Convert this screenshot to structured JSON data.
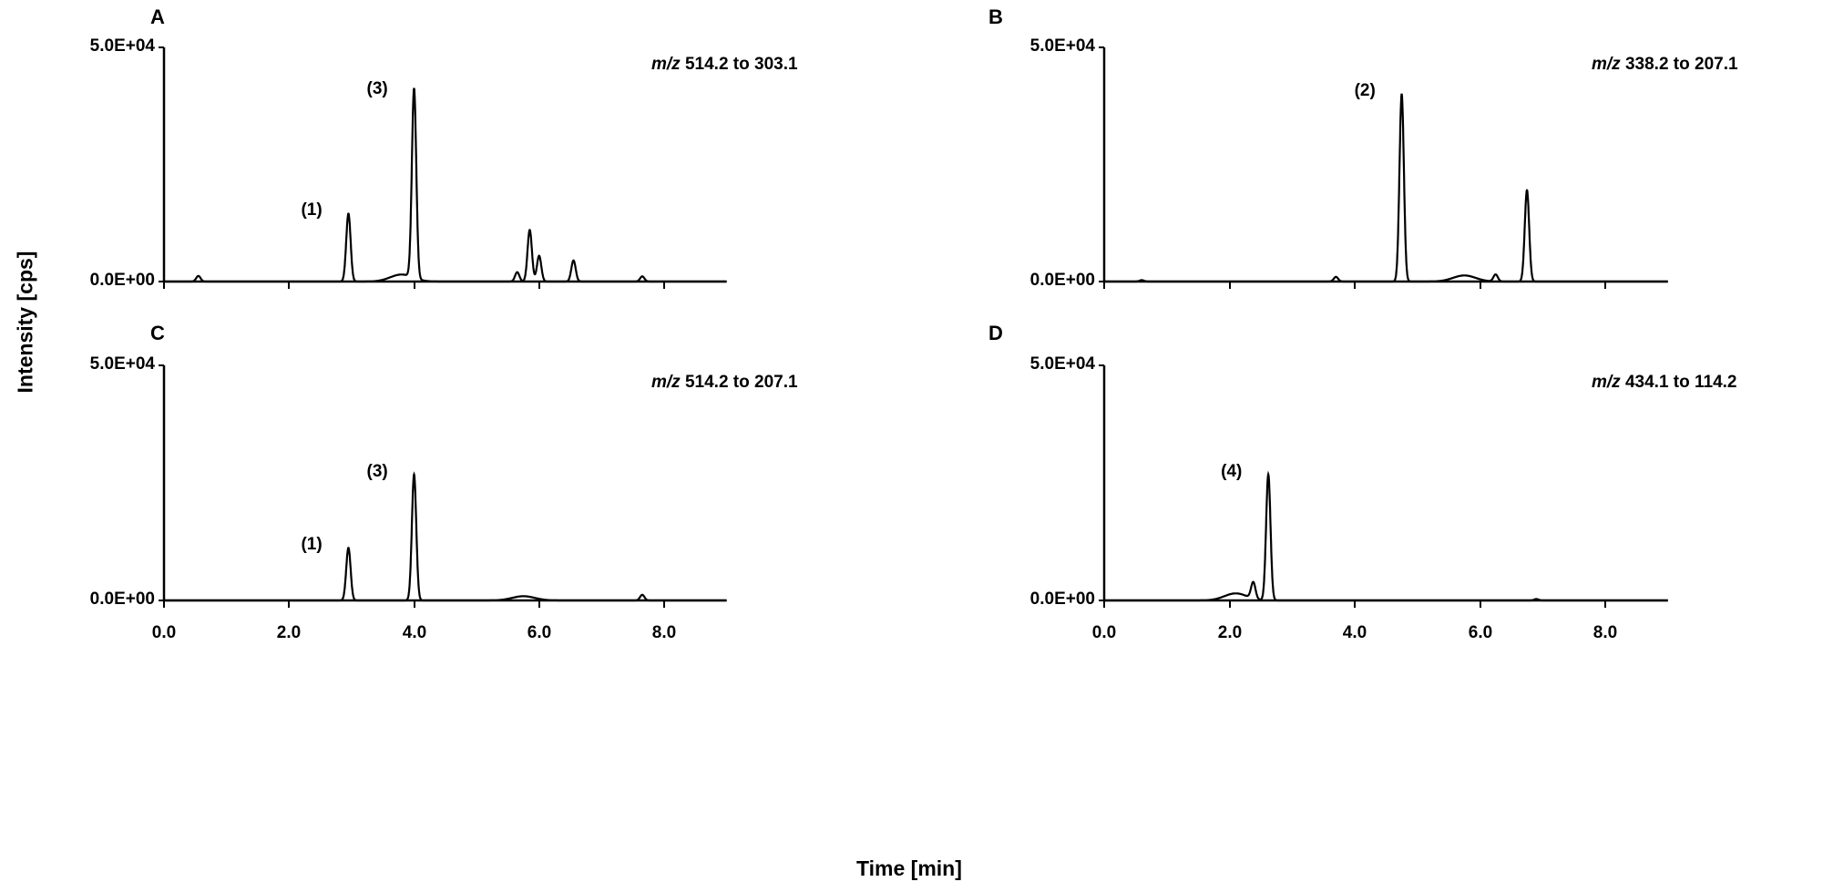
{
  "figure": {
    "ylabel": "Intensity [cps]",
    "xlabel": "Time [min]"
  },
  "panels": [
    {
      "letter": "A",
      "mz_prefix": "m/z",
      "mz_value": "514.2 to 303.1",
      "ymax_label": "5.0E+04",
      "ymin_label": "0.0E+00",
      "peaks": [
        {
          "label": "(1)",
          "rt": 2.95
        },
        {
          "label": "(3)",
          "rt": 4.0
        }
      ]
    },
    {
      "letter": "B",
      "mz_prefix": "m/z",
      "mz_value": "338.2 to 207.1",
      "ymax_label": "5.0E+04",
      "ymin_label": "0.0E+00",
      "peaks": [
        {
          "label": "(2)",
          "rt": 4.75
        }
      ]
    },
    {
      "letter": "C",
      "mz_prefix": "m/z",
      "mz_value": "514.2 to 207.1",
      "ymax_label": "5.0E+04",
      "ymin_label": "0.0E+00",
      "peaks": [
        {
          "label": "(1)",
          "rt": 2.95
        },
        {
          "label": "(3)",
          "rt": 4.0
        }
      ]
    },
    {
      "letter": "D",
      "mz_prefix": "m/z",
      "mz_value": "434.1 to 114.2",
      "ymax_label": "5.0E+04",
      "ymin_label": "0.0E+00",
      "peaks": [
        {
          "label": "(4)",
          "rt": 2.62
        }
      ]
    }
  ],
  "xticks": [
    "0.0",
    "2.0",
    "4.0",
    "6.0",
    "8.0"
  ],
  "chart_data": [
    {
      "type": "line",
      "title": "A: m/z 514.2 to 303.1",
      "xlabel": "Time [min]",
      "ylabel": "Intensity [cps]",
      "xlim": [
        0,
        9
      ],
      "ylim": [
        0,
        50000
      ],
      "x_ticks": [
        0.0,
        2.0,
        4.0,
        6.0,
        8.0
      ],
      "y_ticks": [
        "0.0E+00",
        "5.0E+04"
      ],
      "grid": false,
      "peaks": [
        {
          "rt": 0.55,
          "intensity": 1200
        },
        {
          "rt": 2.95,
          "intensity": 14500,
          "label": "(1)"
        },
        {
          "rt": 3.8,
          "intensity": 1500,
          "note": "broad shoulder"
        },
        {
          "rt": 4.0,
          "intensity": 40500,
          "label": "(3)"
        },
        {
          "rt": 5.65,
          "intensity": 2000
        },
        {
          "rt": 5.85,
          "intensity": 11000
        },
        {
          "rt": 6.0,
          "intensity": 5500
        },
        {
          "rt": 6.55,
          "intensity": 4500
        },
        {
          "rt": 7.65,
          "intensity": 1100
        }
      ]
    },
    {
      "type": "line",
      "title": "B: m/z 338.2 to 207.1",
      "xlabel": "Time [min]",
      "ylabel": "Intensity [cps]",
      "xlim": [
        0,
        9
      ],
      "ylim": [
        0,
        50000
      ],
      "x_ticks": [
        0.0,
        2.0,
        4.0,
        6.0,
        8.0
      ],
      "y_ticks": [
        "0.0E+00",
        "5.0E+04"
      ],
      "grid": false,
      "peaks": [
        {
          "rt": 0.6,
          "intensity": 300
        },
        {
          "rt": 3.7,
          "intensity": 1000
        },
        {
          "rt": 4.75,
          "intensity": 40000,
          "label": "(2)"
        },
        {
          "rt": 5.75,
          "intensity": 1300,
          "note": "broad hump"
        },
        {
          "rt": 6.25,
          "intensity": 1500
        },
        {
          "rt": 6.75,
          "intensity": 19500
        }
      ]
    },
    {
      "type": "line",
      "title": "C: m/z 514.2 to 207.1",
      "xlabel": "Time [min]",
      "ylabel": "Intensity [cps]",
      "xlim": [
        0,
        9
      ],
      "ylim": [
        0,
        50000
      ],
      "x_ticks": [
        0.0,
        2.0,
        4.0,
        6.0,
        8.0
      ],
      "y_ticks": [
        "0.0E+00",
        "5.0E+04"
      ],
      "grid": false,
      "peaks": [
        {
          "rt": 2.95,
          "intensity": 11200,
          "label": "(1)"
        },
        {
          "rt": 4.0,
          "intensity": 26800,
          "label": "(3)"
        },
        {
          "rt": 5.75,
          "intensity": 900,
          "note": "broad hump"
        },
        {
          "rt": 7.65,
          "intensity": 1200
        }
      ]
    },
    {
      "type": "line",
      "title": "D: m/z 434.1 to 114.2",
      "xlabel": "Time [min]",
      "ylabel": "Intensity [cps]",
      "xlim": [
        0,
        9
      ],
      "ylim": [
        0,
        50000
      ],
      "x_ticks": [
        0.0,
        2.0,
        4.0,
        6.0,
        8.0
      ],
      "y_ticks": [
        "0.0E+00",
        "5.0E+04"
      ],
      "grid": false,
      "peaks": [
        {
          "rt": 2.1,
          "intensity": 1500,
          "note": "rising tail"
        },
        {
          "rt": 2.38,
          "intensity": 3500
        },
        {
          "rt": 2.62,
          "intensity": 26800,
          "label": "(4)"
        },
        {
          "rt": 6.9,
          "intensity": 300
        }
      ]
    }
  ]
}
